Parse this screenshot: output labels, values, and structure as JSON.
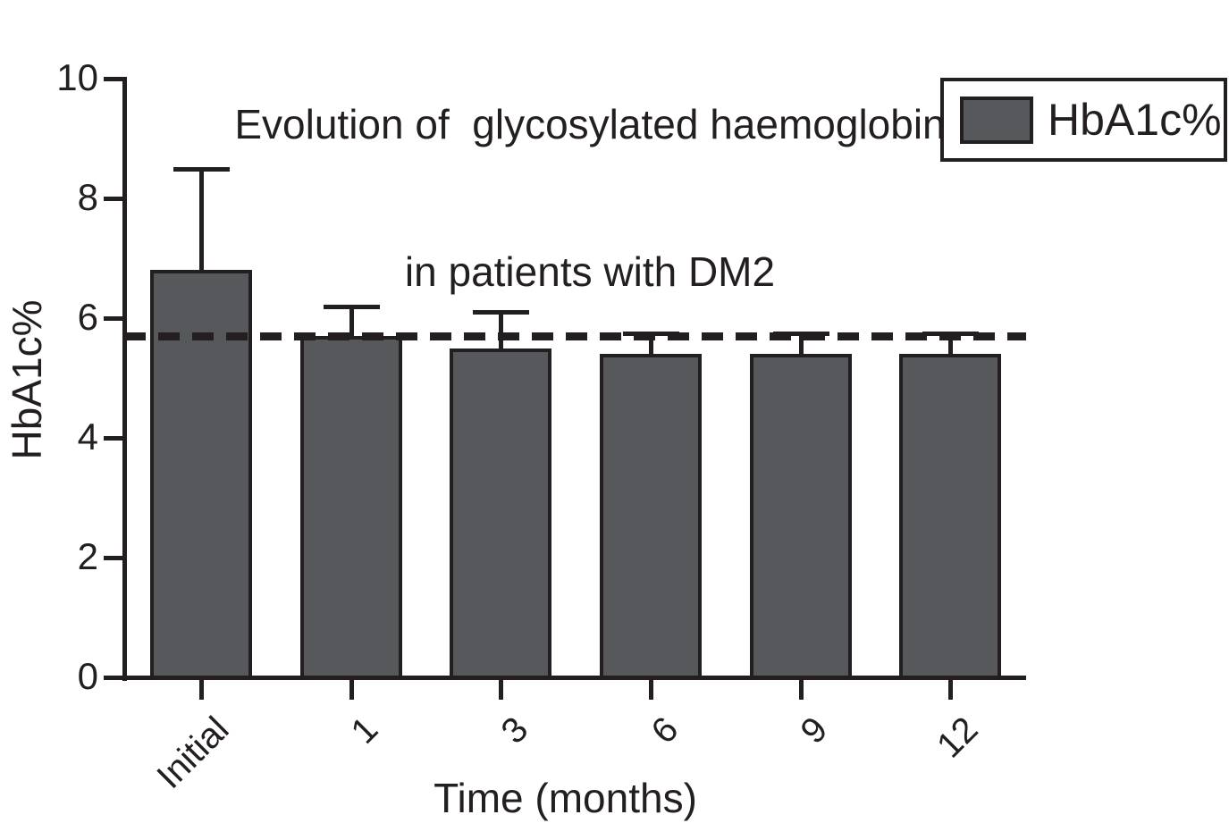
{
  "figure": {
    "background_color": "#ffffff",
    "text_color": "#231f20"
  },
  "chart_data": {
    "type": "bar",
    "title": "Evolution of  glycosylated haemoglobin in patients with DM2",
    "title_lines": [
      "Evolution of  glycosylated haemoglobin",
      "in patients with DM2"
    ],
    "xlabel": "Time (months)",
    "ylabel": "HbA1c%",
    "categories": [
      "Initial",
      "1",
      "3",
      "6",
      "9",
      "12"
    ],
    "values": [
      6.8,
      5.7,
      5.5,
      5.4,
      5.4,
      5.4
    ],
    "error_top": [
      8.5,
      6.2,
      6.1,
      5.75,
      5.75,
      5.75
    ],
    "error_plus": [
      1.7,
      0.5,
      0.6,
      0.35,
      0.35,
      0.35
    ],
    "reference_line": 5.7,
    "reference_line_style": "dashed",
    "ylim": [
      0,
      10
    ],
    "yticks": [
      0,
      2,
      4,
      6,
      8,
      10
    ],
    "grid": false,
    "x_tick_label_rotation_deg": -45,
    "legend": {
      "position": "top-right",
      "entries": [
        {
          "label": "HbA1c%",
          "color": "#57585b"
        }
      ]
    },
    "colors": {
      "bar_fill": "#57585b",
      "line": "#231f20",
      "background": "#ffffff"
    }
  }
}
